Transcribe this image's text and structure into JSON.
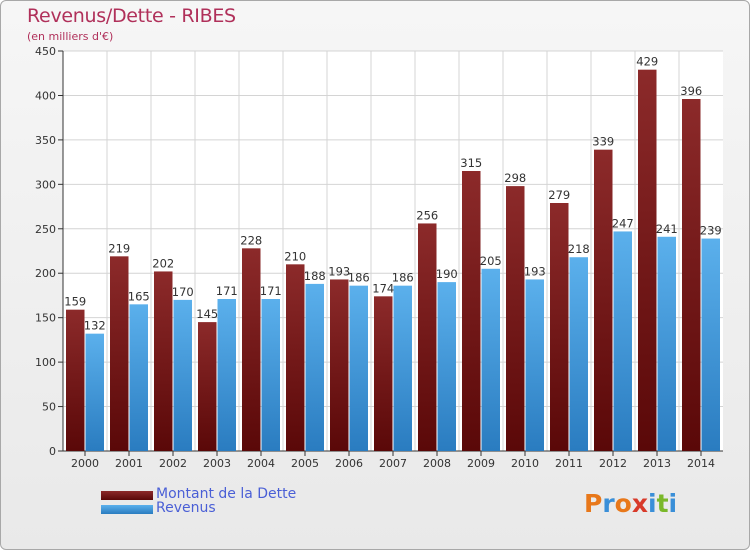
{
  "title": "Revenus/Dette - RIBES",
  "subtitle": "(en milliers d'€)",
  "chart_data": {
    "type": "bar",
    "categories": [
      "2000",
      "2001",
      "2002",
      "2003",
      "2004",
      "2005",
      "2006",
      "2007",
      "2008",
      "2009",
      "2010",
      "2011",
      "2012",
      "2013",
      "2014"
    ],
    "series": [
      {
        "name": "Montant de la Dette",
        "values": [
          159,
          219,
          202,
          145,
          228,
          210,
          193,
          174,
          256,
          315,
          298,
          279,
          339,
          429,
          396
        ],
        "color": "#7a1a1a"
      },
      {
        "name": "Revenus",
        "values": [
          132,
          165,
          170,
          171,
          171,
          188,
          186,
          186,
          190,
          205,
          193,
          218,
          247,
          241,
          239
        ],
        "color": "#4aa0e0"
      }
    ],
    "ylim": [
      0,
      450
    ],
    "yticks": [
      0,
      50,
      100,
      150,
      200,
      250,
      300,
      350,
      400,
      450
    ],
    "grid": true,
    "legend_position": "bottom-left"
  },
  "logo": {
    "letters": [
      "P",
      "r",
      "o",
      "x",
      "i",
      "t",
      "i"
    ],
    "colors": [
      "#e8781a",
      "#3a8fd8",
      "#e8781a",
      "#d83a2a",
      "#3a8fd8",
      "#7ab82a",
      "#3a8fd8"
    ]
  }
}
